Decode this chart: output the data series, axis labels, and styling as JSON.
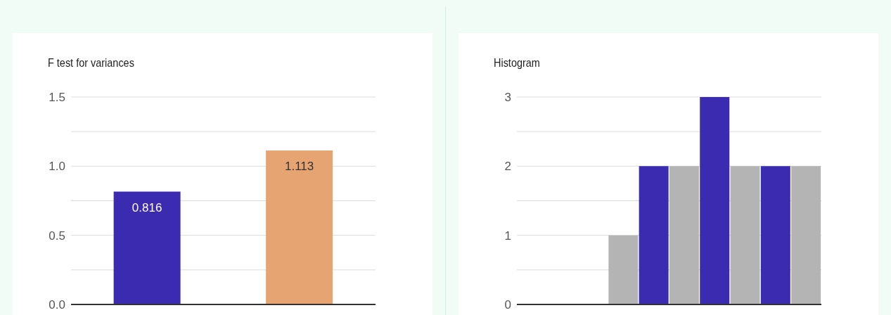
{
  "chart_data": [
    {
      "type": "bar",
      "title": "F test for variances",
      "categories": [
        null,
        null
      ],
      "values": [
        0.816,
        1.113
      ],
      "colors": [
        "#3a2bb0",
        "#e6a472"
      ],
      "data_labels": true,
      "ylim": [
        0,
        1.5
      ],
      "yticks": [
        {
          "value": 0,
          "label": "0.0"
        },
        {
          "value": 0.25,
          "label": null
        },
        {
          "value": 0.5,
          "label": "0.5"
        },
        {
          "value": 0.75,
          "label": null
        },
        {
          "value": 1,
          "label": "1.0"
        },
        {
          "value": 1.25,
          "label": null
        },
        {
          "value": 1.5,
          "label": "1.5"
        }
      ],
      "grid": "y"
    },
    {
      "type": "bar",
      "title": "Histogram",
      "categories": [
        null,
        null,
        null,
        null,
        null,
        null,
        null,
        null,
        null,
        null
      ],
      "values": [
        0,
        0,
        0,
        1,
        2,
        2,
        3,
        2,
        2,
        2
      ],
      "colors": [
        "#b4b4b4",
        "#3a2bb0",
        "#b4b4b4",
        "#b4b4b4",
        "#3a2bb0",
        "#b4b4b4",
        "#3a2bb0",
        "#b4b4b4",
        "#3a2bb0",
        "#b4b4b4"
      ],
      "ylim": [
        0,
        3
      ],
      "yticks": [
        0,
        {
          "value": 0.5,
          "label": null
        },
        1,
        {
          "value": 1.5,
          "label": null
        },
        2,
        {
          "value": 2.5,
          "label": null
        },
        3
      ],
      "grid": "y"
    }
  ]
}
